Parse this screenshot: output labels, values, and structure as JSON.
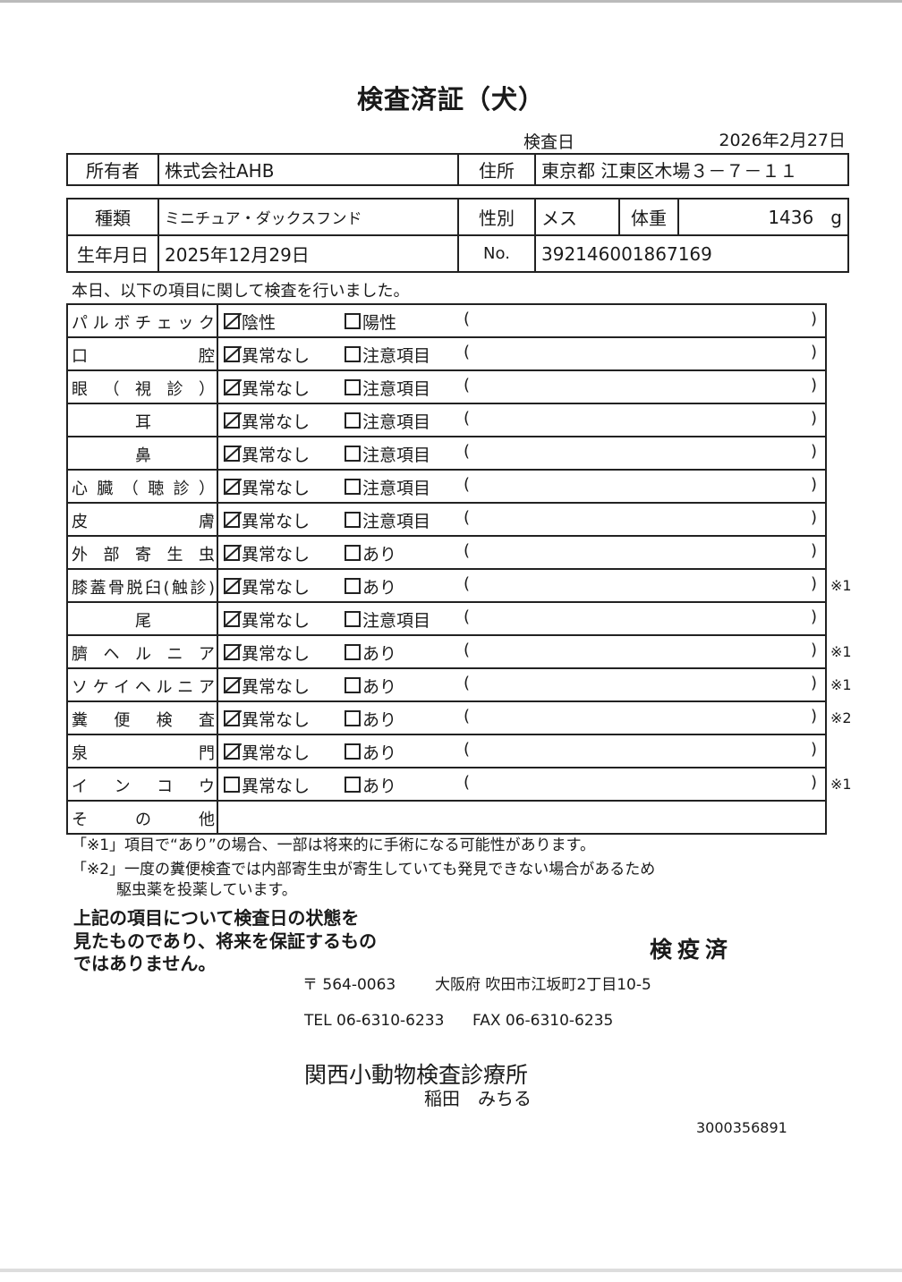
{
  "title": "検査済証（犬）",
  "exam_date": {
    "label": "検査日",
    "value": "2026年2月27日"
  },
  "owner": {
    "label": "所有者",
    "value": "株式会社AHB",
    "address_label": "住所",
    "address": "東京都 江東区木場３－７－１１"
  },
  "animal": {
    "breed_label": "種類",
    "breed": "ミニチュア・ダックスフンド",
    "sex_label": "性別",
    "sex": "メス",
    "weight_label": "体重",
    "weight": "1436",
    "weight_unit": "g",
    "dob_label": "生年月日",
    "dob": "2025年12月29日",
    "no_label": "No.",
    "no": "392146001867169"
  },
  "intro": "本日、以下の項目に関して検査を行いました。",
  "exam_rows": [
    {
      "name": "パルボチェック",
      "opt1": "陰性",
      "opt1_checked": true,
      "opt2": "陽性",
      "opt2_checked": false,
      "note": ""
    },
    {
      "name": "口腔",
      "opt1": "異常なし",
      "opt1_checked": true,
      "opt2": "注意項目",
      "opt2_checked": false,
      "note": ""
    },
    {
      "name": "眼（視診）",
      "opt1": "異常なし",
      "opt1_checked": true,
      "opt2": "注意項目",
      "opt2_checked": false,
      "note": ""
    },
    {
      "name": "耳",
      "opt1": "異常なし",
      "opt1_checked": true,
      "opt2": "注意項目",
      "opt2_checked": false,
      "note": ""
    },
    {
      "name": "鼻",
      "opt1": "異常なし",
      "opt1_checked": true,
      "opt2": "注意項目",
      "opt2_checked": false,
      "note": ""
    },
    {
      "name": "心臓（聴診）",
      "opt1": "異常なし",
      "opt1_checked": true,
      "opt2": "注意項目",
      "opt2_checked": false,
      "note": ""
    },
    {
      "name": "皮膚",
      "opt1": "異常なし",
      "opt1_checked": true,
      "opt2": "注意項目",
      "opt2_checked": false,
      "note": ""
    },
    {
      "name": "外部寄生虫",
      "opt1": "異常なし",
      "opt1_checked": true,
      "opt2": "あり",
      "opt2_checked": false,
      "note": ""
    },
    {
      "name": "膝蓋骨脱臼(触診)",
      "opt1": "異常なし",
      "opt1_checked": true,
      "opt2": "あり",
      "opt2_checked": false,
      "note": "※1"
    },
    {
      "name": "尾",
      "opt1": "異常なし",
      "opt1_checked": true,
      "opt2": "注意項目",
      "opt2_checked": false,
      "note": ""
    },
    {
      "name": "臍ヘルニア",
      "opt1": "異常なし",
      "opt1_checked": true,
      "opt2": "あり",
      "opt2_checked": false,
      "note": "※1"
    },
    {
      "name": "ソケイヘルニア",
      "opt1": "異常なし",
      "opt1_checked": true,
      "opt2": "あり",
      "opt2_checked": false,
      "note": "※1"
    },
    {
      "name": "糞便検査",
      "opt1": "異常なし",
      "opt1_checked": true,
      "opt2": "あり",
      "opt2_checked": false,
      "note": "※2"
    },
    {
      "name": "泉門",
      "opt1": "異常なし",
      "opt1_checked": true,
      "opt2": "あり",
      "opt2_checked": false,
      "note": ""
    },
    {
      "name": "インコウ",
      "opt1": "異常なし",
      "opt1_checked": false,
      "opt2": "あり",
      "opt2_checked": false,
      "note": "※1"
    }
  ],
  "other_label": "その他",
  "paren_open": "(",
  "paren_close": ")",
  "footnotes": [
    "「※1」項目で“あり”の場合、一部は将来的に手術になる可能性があります。",
    "「※2」一度の糞便検査では内部寄生虫が寄生していても発見できない場合があるため",
    "駆虫薬を投薬しています。"
  ],
  "disclaimer": [
    "上記の項目について検査日の状態を",
    "見たものであり、将来を保証するもの",
    "ではありません。"
  ],
  "stamp": "検疫済",
  "clinic": {
    "postal": "〒 564-0063",
    "address": "大阪府 吹田市江坂町2丁目10-5",
    "tel": "TEL 06-6310-6233",
    "fax": "FAX 06-6310-6235",
    "name": "関西小動物検査診療所",
    "person": "稲田　みちる"
  },
  "serial": "3000356891"
}
